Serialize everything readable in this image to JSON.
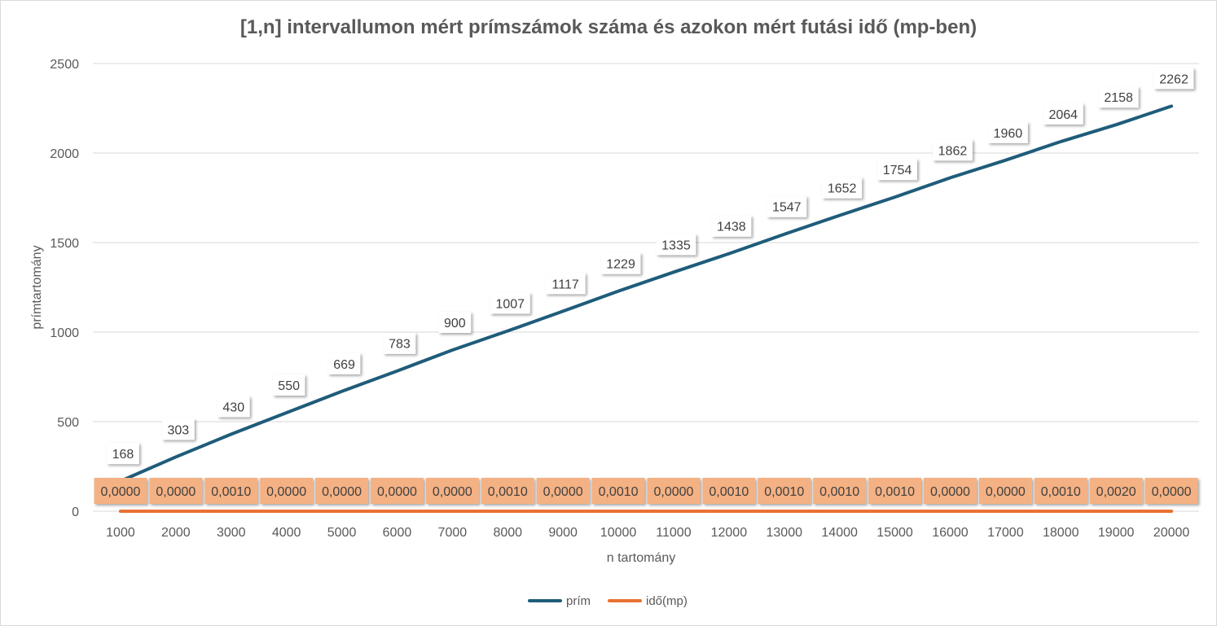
{
  "chart_data": {
    "type": "line",
    "title": "[1,n] intervallumon mért prímszámok száma és azokon mért futási idő (mp-ben)",
    "xlabel": "n tartomány",
    "ylabel": "prímtartomány",
    "ylim": [
      0,
      2500
    ],
    "yticks": [
      "0",
      "500",
      "1000",
      "1500",
      "2000",
      "2500"
    ],
    "grid": true,
    "legend_position": "bottom",
    "categories": [
      "1000",
      "2000",
      "3000",
      "4000",
      "5000",
      "6000",
      "7000",
      "8000",
      "9000",
      "10000",
      "11000",
      "12000",
      "13000",
      "14000",
      "15000",
      "16000",
      "17000",
      "18000",
      "19000",
      "20000"
    ],
    "series": [
      {
        "name": "prím",
        "color": "#1f5c7a",
        "values": [
          168,
          303,
          430,
          550,
          669,
          783,
          900,
          1007,
          1117,
          1229,
          1335,
          1438,
          1547,
          1652,
          1754,
          1862,
          1960,
          2064,
          2158,
          2262
        ],
        "labels": [
          "168",
          "303",
          "430",
          "550",
          "669",
          "783",
          "900",
          "1007",
          "1117",
          "1229",
          "1335",
          "1438",
          "1547",
          "1652",
          "1754",
          "1862",
          "1960",
          "2064",
          "2158",
          "2262"
        ]
      },
      {
        "name": "idő(mp)",
        "color": "#e97132",
        "label_fill": "#f4b183",
        "values": [
          0,
          0,
          0.001,
          0,
          0,
          0,
          0,
          0.001,
          0,
          0.001,
          0,
          0.001,
          0.001,
          0.001,
          0.001,
          0,
          0,
          0.001,
          0.002,
          0
        ],
        "labels": [
          "0,0000",
          "0,0000",
          "0,0010",
          "0,0000",
          "0,0000",
          "0,0000",
          "0,0000",
          "0,0010",
          "0,0000",
          "0,0010",
          "0,0000",
          "0,0010",
          "0,0010",
          "0,0010",
          "0,0010",
          "0,0000",
          "0,0000",
          "0,0010",
          "0,0020",
          "0,0000"
        ]
      }
    ]
  }
}
